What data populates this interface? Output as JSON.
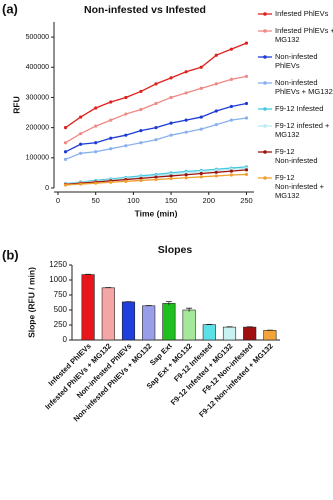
{
  "chart_data": [
    {
      "type": "line",
      "panel_label": "(a)",
      "title": "Non-infested vs Infested",
      "xlabel": "Time (min)",
      "ylabel": "RFU",
      "x": [
        10,
        30,
        50,
        70,
        90,
        110,
        130,
        150,
        170,
        190,
        210,
        230,
        250
      ],
      "xlim": [
        0,
        260
      ],
      "xticks": [
        0,
        50,
        100,
        150,
        200,
        250
      ],
      "ylim": [
        0,
        550000
      ],
      "yticks": [
        0,
        100000,
        200000,
        300000,
        400000,
        500000
      ],
      "series": [
        {
          "name": "Infested PhlEVs",
          "color": "#e0201c",
          "values": [
            200000,
            235000,
            265000,
            285000,
            300000,
            320000,
            345000,
            365000,
            385000,
            400000,
            440000,
            460000,
            480000
          ]
        },
        {
          "name": "Infested PhlEVs + MG132",
          "color": "#ef8a86",
          "values": [
            150000,
            180000,
            205000,
            225000,
            245000,
            260000,
            280000,
            300000,
            315000,
            330000,
            345000,
            360000,
            370000
          ]
        },
        {
          "name": "Non-infested PhlEVs",
          "color": "#1d3bd6",
          "values": [
            120000,
            145000,
            150000,
            165000,
            175000,
            190000,
            200000,
            215000,
            225000,
            235000,
            255000,
            270000,
            280000
          ]
        },
        {
          "name": "Non-infested PhlEVs + MG132",
          "color": "#8ab0ee",
          "values": [
            95000,
            115000,
            120000,
            130000,
            140000,
            150000,
            160000,
            175000,
            185000,
            195000,
            210000,
            225000,
            232000
          ]
        },
        {
          "name": "F9-12 Infested",
          "color": "#46c8e0",
          "values": [
            15000,
            20000,
            25000,
            30000,
            35000,
            40000,
            45000,
            50000,
            55000,
            58000,
            62000,
            66000,
            70000
          ]
        },
        {
          "name": "F9-12 infested + MG132",
          "color": "#b8ecf0",
          "values": [
            14000,
            18000,
            22000,
            27000,
            32000,
            36000,
            40000,
            45000,
            50000,
            54000,
            58000,
            62000,
            65000
          ]
        },
        {
          "name": "F9-12 Non-infested",
          "color": "#9c1410",
          "values": [
            12000,
            16000,
            20000,
            24000,
            28000,
            32000,
            36000,
            40000,
            44000,
            48000,
            52000,
            56000,
            60000
          ]
        },
        {
          "name": "F9-12 Non-infested + MG132",
          "color": "#f0a030",
          "values": [
            10000,
            13000,
            16000,
            19000,
            22000,
            25000,
            28000,
            31000,
            34000,
            37000,
            40000,
            43000,
            45000
          ]
        }
      ]
    },
    {
      "type": "bar",
      "panel_label": "(b)",
      "title": "Slopes",
      "ylabel": "Slope (RFU / min)",
      "categories": [
        "Infested PhlEVs",
        "Infested PhlEVs + MG132",
        "Non-infested PhlEVs",
        "Non-infested PhlEVs + MG132",
        "Sap Ext",
        "Sap Ext + MG132",
        "F9-12 Infested",
        "F9-12 Infested + MG132",
        "F9-12 Non-infested",
        "F9-12 Non-infested + MG132"
      ],
      "values": [
        1090,
        870,
        635,
        570,
        610,
        500,
        255,
        215,
        215,
        160
      ],
      "errors": [
        5,
        5,
        5,
        5,
        30,
        30,
        5,
        5,
        5,
        5
      ],
      "colors": [
        "#e8161b",
        "#f4a6a6",
        "#1f3fdd",
        "#9a9ee8",
        "#1fbf1f",
        "#a6e89a",
        "#5ce0e8",
        "#c8f2f2",
        "#a01010",
        "#f2a33a"
      ],
      "ylim": [
        0,
        1250
      ],
      "yticks": [
        0,
        250,
        500,
        750,
        1000,
        1250
      ]
    }
  ]
}
